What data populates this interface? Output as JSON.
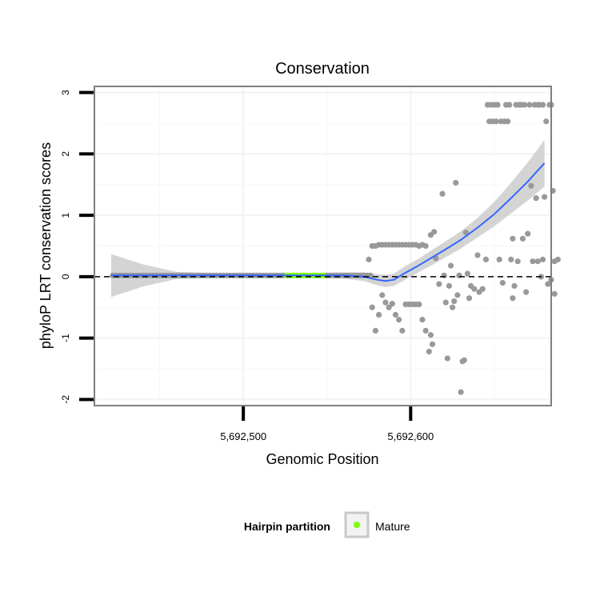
{
  "chart_data": {
    "type": "scatter",
    "title": "Conservation",
    "xlabel": "Genomic Position",
    "ylabel": "phyloP LRT conservation scores",
    "xlim": [
      5692411,
      5692684
    ],
    "ylim": [
      -2.1,
      3.1
    ],
    "x_ticks": [
      {
        "value": 5692500,
        "label": "5,692,500"
      },
      {
        "value": 5692600,
        "label": "5,692,600"
      }
    ],
    "y_ticks": [
      {
        "value": -2,
        "label": "-2"
      },
      {
        "value": -1,
        "label": "-1"
      },
      {
        "value": 0,
        "label": "0"
      },
      {
        "value": 1,
        "label": "1"
      },
      {
        "value": 2,
        "label": "2"
      },
      {
        "value": 3,
        "label": "3"
      }
    ],
    "reference_line": {
      "y": 0,
      "style": "dashed"
    },
    "legend": {
      "title": "Hairpin partition",
      "placement": "bottom",
      "entries": [
        {
          "label": "Mature",
          "color": "#7cfc00"
        }
      ]
    },
    "colors": {
      "points": "#999999",
      "mature": "#7cfc00",
      "smooth_line": "#3366ff",
      "ribbon": "#cccccc",
      "panel_border": "#7f7f7f",
      "grid": "#f2f2f2"
    },
    "mature_range": [
      5692525,
      5692548
    ],
    "points": [
      [
        5692422,
        0.02
      ],
      [
        5692424,
        0.02
      ],
      [
        5692426,
        0.02
      ],
      [
        5692428,
        0.02
      ],
      [
        5692430,
        0.02
      ],
      [
        5692432,
        0.02
      ],
      [
        5692434,
        0.02
      ],
      [
        5692436,
        0.02
      ],
      [
        5692438,
        0.02
      ],
      [
        5692440,
        0.02
      ],
      [
        5692442,
        0.02
      ],
      [
        5692444,
        0.02
      ],
      [
        5692446,
        0.02
      ],
      [
        5692448,
        0.02
      ],
      [
        5692450,
        0.02
      ],
      [
        5692452,
        0.02
      ],
      [
        5692454,
        0.02
      ],
      [
        5692456,
        0.02
      ],
      [
        5692458,
        0.02
      ],
      [
        5692460,
        0.02
      ],
      [
        5692462,
        0.02
      ],
      [
        5692464,
        0.02
      ],
      [
        5692466,
        0.02
      ],
      [
        5692468,
        0.02
      ],
      [
        5692470,
        0.02
      ],
      [
        5692472,
        0.02
      ],
      [
        5692474,
        0.02
      ],
      [
        5692476,
        0.02
      ],
      [
        5692478,
        0.02
      ],
      [
        5692480,
        0.02
      ],
      [
        5692482,
        0.02
      ],
      [
        5692484,
        0.02
      ],
      [
        5692486,
        0.02
      ],
      [
        5692488,
        0.02
      ],
      [
        5692490,
        0.02
      ],
      [
        5692492,
        0.02
      ],
      [
        5692494,
        0.02
      ],
      [
        5692496,
        0.02
      ],
      [
        5692498,
        0.02
      ],
      [
        5692500,
        0.02
      ],
      [
        5692502,
        0.02
      ],
      [
        5692504,
        0.02
      ],
      [
        5692506,
        0.02
      ],
      [
        5692508,
        0.02
      ],
      [
        5692510,
        0.02
      ],
      [
        5692512,
        0.02
      ],
      [
        5692514,
        0.02
      ],
      [
        5692516,
        0.02
      ],
      [
        5692518,
        0.02
      ],
      [
        5692520,
        0.02
      ],
      [
        5692522,
        0.02
      ],
      [
        5692524,
        0.02
      ],
      [
        5692550,
        0.02
      ],
      [
        5692552,
        0.02
      ],
      [
        5692554,
        0.02
      ],
      [
        5692556,
        0.02
      ],
      [
        5692558,
        0.02
      ],
      [
        5692560,
        0.02
      ],
      [
        5692562,
        0.02
      ],
      [
        5692564,
        0.02
      ],
      [
        5692566,
        0.02
      ],
      [
        5692568,
        0.02
      ],
      [
        5692570,
        0.02
      ],
      [
        5692572,
        0.02
      ],
      [
        5692574,
        0.02
      ],
      [
        5692576,
        0.02
      ],
      [
        5692575,
        0.28
      ],
      [
        5692577,
        0.5
      ],
      [
        5692579,
        0.5
      ],
      [
        5692581,
        0.52
      ],
      [
        5692583,
        0.52
      ],
      [
        5692585,
        0.52
      ],
      [
        5692587,
        0.52
      ],
      [
        5692589,
        0.52
      ],
      [
        5692591,
        0.52
      ],
      [
        5692593,
        0.52
      ],
      [
        5692595,
        0.52
      ],
      [
        5692597,
        0.52
      ],
      [
        5692599,
        0.52
      ],
      [
        5692601,
        0.52
      ],
      [
        5692603,
        0.52
      ],
      [
        5692605,
        0.5
      ],
      [
        5692607,
        0.52
      ],
      [
        5692609,
        0.5
      ],
      [
        5692577,
        -0.5
      ],
      [
        5692579,
        -0.88
      ],
      [
        5692581,
        -0.62
      ],
      [
        5692583,
        -0.3
      ],
      [
        5692585,
        -0.42
      ],
      [
        5692587,
        -0.5
      ],
      [
        5692589,
        -0.44
      ],
      [
        5692591,
        -0.62
      ],
      [
        5692593,
        -0.7
      ],
      [
        5692595,
        -0.88
      ],
      [
        5692597,
        -0.45
      ],
      [
        5692599,
        -0.45
      ],
      [
        5692601,
        -0.45
      ],
      [
        5692603,
        -0.45
      ],
      [
        5692605,
        -0.45
      ],
      [
        5692607,
        -0.7
      ],
      [
        5692609,
        -0.88
      ],
      [
        5692611,
        -1.22
      ],
      [
        5692612,
        -0.95
      ],
      [
        5692613,
        -1.1
      ],
      [
        5692612,
        0.68
      ],
      [
        5692614,
        0.73
      ],
      [
        5692615,
        0.3
      ],
      [
        5692617,
        -0.12
      ],
      [
        5692619,
        1.35
      ],
      [
        5692620,
        0.02
      ],
      [
        5692621,
        -0.42
      ],
      [
        5692622,
        -1.33
      ],
      [
        5692623,
        -0.15
      ],
      [
        5692624,
        0.18
      ],
      [
        5692625,
        -0.5
      ],
      [
        5692626,
        -0.4
      ],
      [
        5692627,
        1.53
      ],
      [
        5692628,
        -0.3
      ],
      [
        5692629,
        0.02
      ],
      [
        5692630,
        -1.88
      ],
      [
        5692631,
        -1.38
      ],
      [
        5692632,
        -1.36
      ],
      [
        5692633,
        0.72
      ],
      [
        5692634,
        0.05
      ],
      [
        5692635,
        -0.35
      ],
      [
        5692636,
        -0.15
      ],
      [
        5692638,
        -0.2
      ],
      [
        5692640,
        0.35
      ],
      [
        5692641,
        -0.25
      ],
      [
        5692643,
        -0.2
      ],
      [
        5692645,
        0.28
      ],
      [
        5692646,
        2.8
      ],
      [
        5692647,
        2.53
      ],
      [
        5692648,
        2.8
      ],
      [
        5692649,
        2.53
      ],
      [
        5692650,
        2.8
      ],
      [
        5692651,
        2.53
      ],
      [
        5692652,
        2.8
      ],
      [
        5692653,
        0.28
      ],
      [
        5692654,
        2.53
      ],
      [
        5692655,
        -0.1
      ],
      [
        5692656,
        2.53
      ],
      [
        5692657,
        2.8
      ],
      [
        5692658,
        2.53
      ],
      [
        5692659,
        2.8
      ],
      [
        5692660,
        0.28
      ],
      [
        5692661,
        -0.35
      ],
      [
        5692661,
        0.62
      ],
      [
        5692662,
        -0.15
      ],
      [
        5692663,
        2.8
      ],
      [
        5692664,
        0.25
      ],
      [
        5692665,
        2.8
      ],
      [
        5692666,
        2.8
      ],
      [
        5692667,
        0.62
      ],
      [
        5692668,
        2.8
      ],
      [
        5692669,
        -0.25
      ],
      [
        5692670,
        0.7
      ],
      [
        5692671,
        2.8
      ],
      [
        5692672,
        1.48
      ],
      [
        5692673,
        0.25
      ],
      [
        5692674,
        2.8
      ],
      [
        5692675,
        1.28
      ],
      [
        5692676,
        2.8
      ],
      [
        5692676,
        0.25
      ],
      [
        5692677,
        2.8
      ],
      [
        5692678,
        0.0
      ],
      [
        5692679,
        0.28
      ],
      [
        5692679,
        2.8
      ],
      [
        5692680,
        1.3
      ],
      [
        5692681,
        2.53
      ],
      [
        5692682,
        -0.12
      ],
      [
        5692683,
        2.8
      ],
      [
        5692684,
        2.8
      ],
      [
        5692685,
        1.4
      ],
      [
        5692684,
        -0.05
      ],
      [
        5692686,
        0.25
      ],
      [
        5692686,
        -0.28
      ],
      [
        5692688,
        0.28
      ]
    ],
    "mature_points": [
      [
        5692526,
        0.02
      ],
      [
        5692528,
        0.02
      ],
      [
        5692530,
        0.02
      ],
      [
        5692532,
        0.02
      ],
      [
        5692534,
        0.02
      ],
      [
        5692536,
        0.02
      ],
      [
        5692538,
        0.02
      ],
      [
        5692540,
        0.02
      ],
      [
        5692542,
        0.02
      ],
      [
        5692544,
        0.02
      ],
      [
        5692546,
        0.02
      ],
      [
        5692548,
        0.02
      ]
    ],
    "smooth": [
      [
        5692421,
        0.02
      ],
      [
        5692440,
        0.02
      ],
      [
        5692460,
        0.02
      ],
      [
        5692480,
        0.02
      ],
      [
        5692500,
        0.02
      ],
      [
        5692520,
        0.02
      ],
      [
        5692540,
        0.02
      ],
      [
        5692560,
        0.02
      ],
      [
        5692572,
        0.0
      ],
      [
        5692580,
        -0.05
      ],
      [
        5692585,
        -0.07
      ],
      [
        5692590,
        -0.05
      ],
      [
        5692596,
        0.05
      ],
      [
        5692604,
        0.17
      ],
      [
        5692612,
        0.3
      ],
      [
        5692620,
        0.43
      ],
      [
        5692630,
        0.6
      ],
      [
        5692640,
        0.8
      ],
      [
        5692650,
        1.02
      ],
      [
        5692660,
        1.28
      ],
      [
        5692670,
        1.55
      ],
      [
        5692680,
        1.85
      ]
    ],
    "ribbon_halfwidth": [
      [
        5692421,
        0.35
      ],
      [
        5692440,
        0.18
      ],
      [
        5692460,
        0.06
      ],
      [
        5692480,
        0.04
      ],
      [
        5692500,
        0.04
      ],
      [
        5692520,
        0.04
      ],
      [
        5692540,
        0.04
      ],
      [
        5692560,
        0.05
      ],
      [
        5692572,
        0.07
      ],
      [
        5692580,
        0.09
      ],
      [
        5692585,
        0.1
      ],
      [
        5692590,
        0.1
      ],
      [
        5692596,
        0.11
      ],
      [
        5692604,
        0.11
      ],
      [
        5692612,
        0.12
      ],
      [
        5692620,
        0.13
      ],
      [
        5692630,
        0.14
      ],
      [
        5692640,
        0.16
      ],
      [
        5692650,
        0.2
      ],
      [
        5692660,
        0.25
      ],
      [
        5692670,
        0.31
      ],
      [
        5692680,
        0.38
      ]
    ]
  }
}
